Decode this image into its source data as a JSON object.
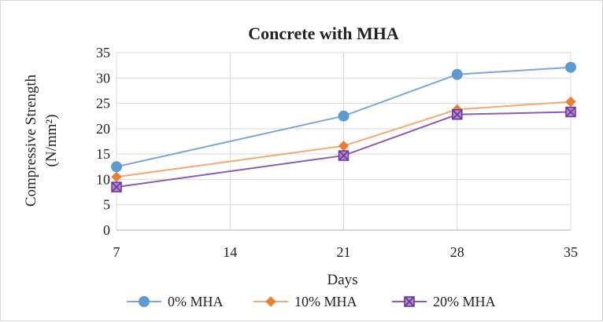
{
  "chart_data": {
    "type": "line",
    "title": "Concrete with MHA",
    "xlabel": "Days",
    "ylabel_line1": "Compressive Strength",
    "ylabel_line2": "(N/mm²)",
    "x_ticks": [
      "7",
      "14",
      "21",
      "28",
      "35"
    ],
    "y_ticks": [
      "0",
      "5",
      "10",
      "15",
      "20",
      "25",
      "30",
      "35"
    ],
    "xlim": [
      7,
      35
    ],
    "ylim": [
      0,
      35
    ],
    "grid": true,
    "legend_position": "bottom",
    "series": [
      {
        "name": "0% MHA",
        "color": "#7ba7dd",
        "marker": "circle",
        "marker_color": "#5b9bd5",
        "points": [
          {
            "x": 7,
            "y": 12.5
          },
          {
            "x": 21,
            "y": 22.5
          },
          {
            "x": 28,
            "y": 30.7
          },
          {
            "x": 35,
            "y": 32.1
          }
        ]
      },
      {
        "name": "10% MHA",
        "color": "#f4a872",
        "marker": "diamond",
        "marker_color": "#ed7d31",
        "points": [
          {
            "x": 7,
            "y": 10.5
          },
          {
            "x": 21,
            "y": 16.6
          },
          {
            "x": 28,
            "y": 23.8
          },
          {
            "x": 35,
            "y": 25.3
          }
        ]
      },
      {
        "name": "20% MHA",
        "color": "#8a5bb7",
        "marker": "square-x",
        "marker_color": "#7030a0",
        "points": [
          {
            "x": 7,
            "y": 8.5
          },
          {
            "x": 21,
            "y": 14.7
          },
          {
            "x": 28,
            "y": 22.8
          },
          {
            "x": 35,
            "y": 23.3
          }
        ]
      }
    ]
  }
}
